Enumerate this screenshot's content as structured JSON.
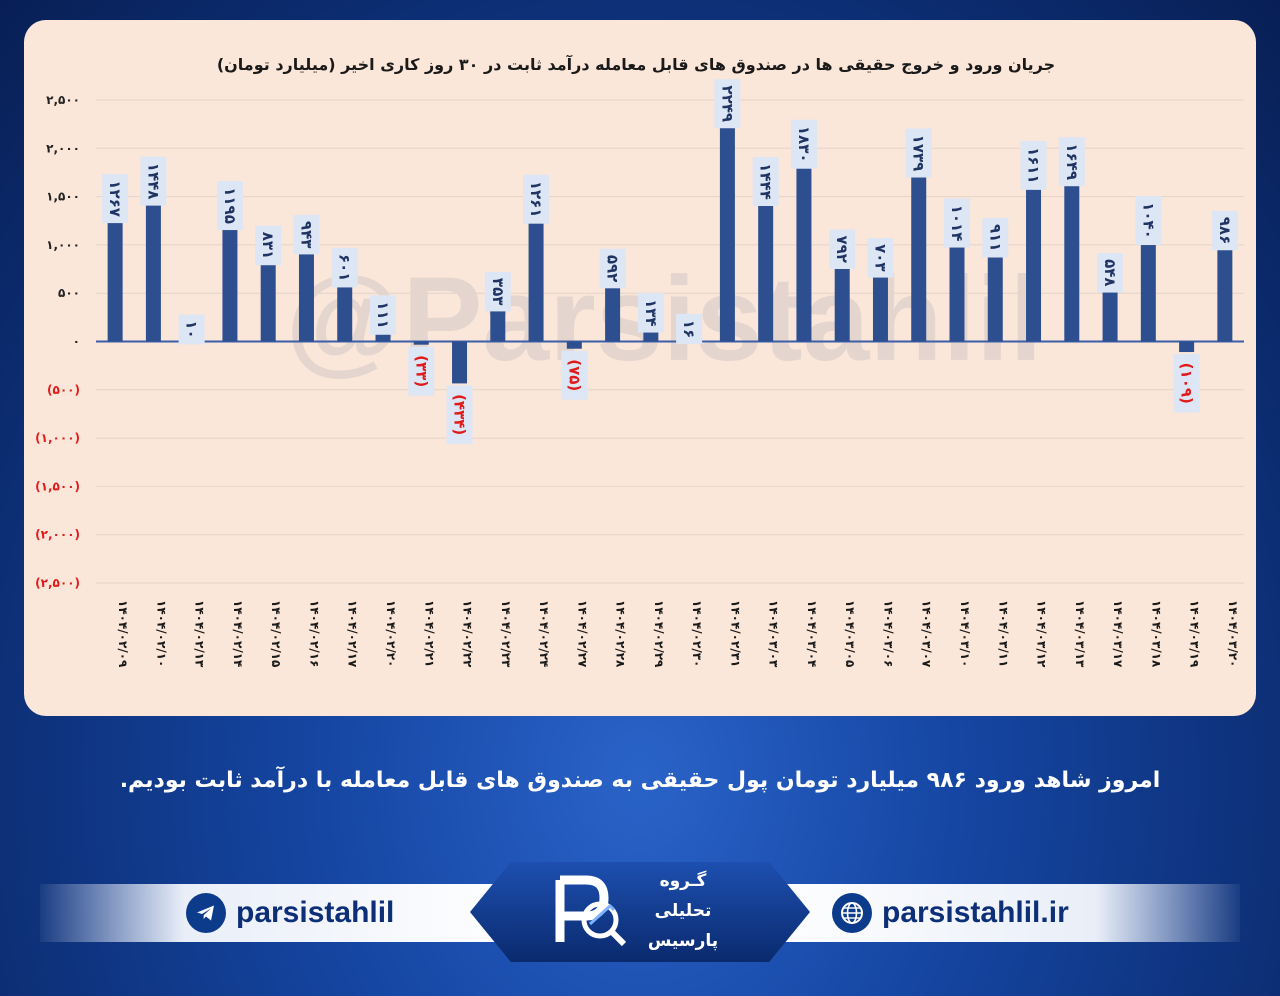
{
  "chart_data": {
    "type": "bar",
    "title": "جریان ورود و خروج حقیقی ها در صندوق های قابل معامله درآمد ثابت در ۳۰ روز کاری اخیر (میلیارد تومان)",
    "categories": [
      "۱۴۰۴/۰۲/۰۹",
      "۱۴۰۴/۰۲/۱۰",
      "۱۴۰۴/۰۲/۱۳",
      "۱۴۰۴/۰۲/۱۴",
      "۱۴۰۴/۰۲/۱۵",
      "۱۴۰۴/۰۲/۱۶",
      "۱۴۰۴/۰۲/۱۷",
      "۱۴۰۴/۰۲/۲۰",
      "۱۴۰۴/۰۲/۲۱",
      "۱۴۰۴/۰۲/۲۲",
      "۱۴۰۴/۰۲/۲۳",
      "۱۴۰۴/۰۲/۲۴",
      "۱۴۰۴/۰۲/۲۷",
      "۱۴۰۴/۰۲/۲۸",
      "۱۴۰۴/۰۲/۲۹",
      "۱۴۰۴/۰۲/۳۰",
      "۱۴۰۴/۰۲/۳۱",
      "۱۴۰۴/۰۳/۰۳",
      "۱۴۰۴/۰۳/۰۴",
      "۱۴۰۴/۰۳/۰۵",
      "۱۴۰۴/۰۳/۰۶",
      "۱۴۰۴/۰۳/۰۷",
      "۱۴۰۴/۰۳/۱۰",
      "۱۴۰۴/۰۳/۱۱",
      "۱۴۰۴/۰۳/۱۲",
      "۱۴۰۴/۰۳/۱۳",
      "۱۴۰۴/۰۳/۱۷",
      "۱۴۰۴/۰۳/۱۸",
      "۱۴۰۴/۰۳/۱۹",
      "۱۴۰۴/۰۳/۲۰"
    ],
    "values": [
      1267,
      1448,
      10,
      1195,
      831,
      943,
      601,
      111,
      -33,
      -434,
      353,
      1261,
      -75,
      592,
      134,
      16,
      2249,
      1444,
      1830,
      792,
      703,
      1739,
      1014,
      911,
      1611,
      1649,
      548,
      1040,
      -109,
      986
    ],
    "data_labels": [
      "۱۲۶۷",
      "۱۴۴۸",
      "۱۰",
      "۱۱۹۵",
      "۸۳۱",
      "۹۴۳",
      "۶۰۱",
      "۱۱۱",
      "(۳۳)",
      "(۴۳۴)",
      "۳۵۳",
      "۱۲۶۱",
      "(۷۵)",
      "۵۹۲",
      "۱۳۴",
      "۱۶",
      "۲۲۴۹",
      "۱۴۴۴",
      "۱۸۳۰",
      "۷۹۲",
      "۷۰۳",
      "۱۷۳۹",
      "۱۰۱۴",
      "۹۱۱",
      "۱۶۱۱",
      "۱۶۴۹",
      "۵۴۸",
      "۱۰۴۰",
      "(۱۰۹)",
      "۹۸۶"
    ],
    "ylim": [
      -2500,
      2500
    ],
    "yticks": [
      2500,
      2000,
      1500,
      1000,
      500,
      0,
      -500,
      -1000,
      -1500,
      -2000,
      -2500
    ],
    "ytick_labels": [
      "۲,۵۰۰",
      "۲,۰۰۰",
      "۱,۵۰۰",
      "۱,۰۰۰",
      "۵۰۰",
      "۰",
      "(۵۰۰)",
      "(۱,۰۰۰)",
      "(۱,۵۰۰)",
      "(۲,۰۰۰)",
      "(۲,۵۰۰)"
    ],
    "xlabel": "",
    "ylabel": "",
    "grid": true,
    "legend": "none",
    "colors": {
      "bar": "#2e4f8f",
      "label_bg": "#dde6f5",
      "negative_text": "#e01b1b",
      "positive_text": "#1f3463",
      "background": "#fbe7da"
    }
  },
  "watermark": "@Parsistahlil",
  "headline": "امروز شاهد ورود ۹۸۶ میلیارد تومان پول حقیقی به صندوق های قابل معامله با درآمد ثابت بودیم.",
  "footer": {
    "telegram_handle": "parsistahlil",
    "website": "parsistahlil.ir",
    "logo_line1": "گـروه",
    "logo_line2": "تحلیلی",
    "logo_line3": "پارسیس",
    "telegram_icon": "telegram-icon",
    "globe_icon": "globe-icon"
  }
}
